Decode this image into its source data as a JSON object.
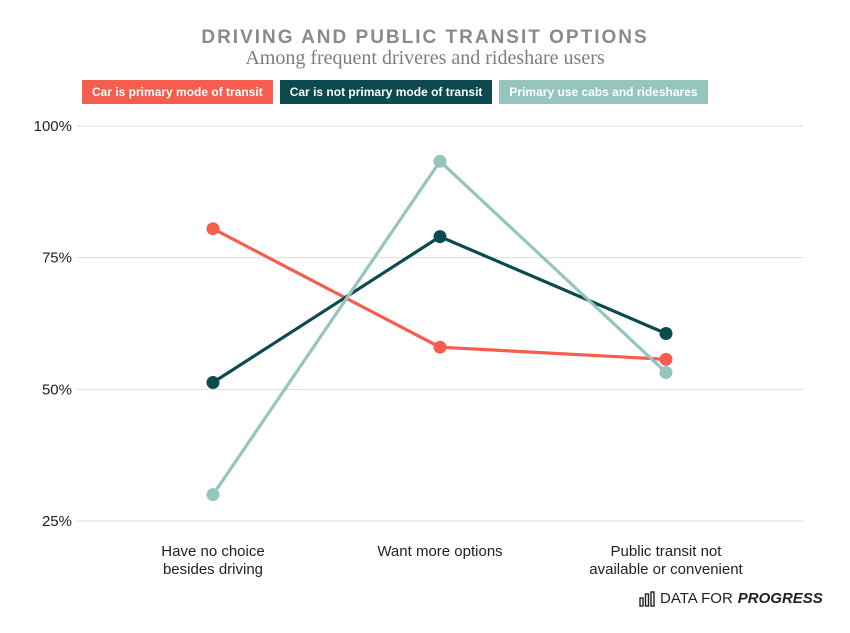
{
  "title": "DRIVING AND PUBLIC TRANSIT OPTIONS",
  "subtitle": "Among frequent driveres and rideshare users",
  "legend": [
    {
      "label": "Car is primary mode of transit",
      "color": "#f55d4e"
    },
    {
      "label": "Car is not primary mode of transit",
      "color": "#0c4a4f"
    },
    {
      "label": "Primary use cabs and rideshares",
      "color": "#95c5bd"
    }
  ],
  "brand": {
    "prefix": "DATA FOR",
    "strong": "PROGRESS",
    "icon": "bar-chart-icon"
  },
  "chart_data": {
    "type": "line",
    "categories": [
      [
        "Have no choice",
        "besides driving"
      ],
      [
        "Want more options"
      ],
      [
        "Public transit not",
        "available or convenient"
      ]
    ],
    "ylim": [
      25,
      100
    ],
    "yticks": [
      {
        "value": 25,
        "label": "25%"
      },
      {
        "value": 50,
        "label": "50%"
      },
      {
        "value": 75,
        "label": "75%"
      },
      {
        "value": 100,
        "label": "100%"
      }
    ],
    "grid": true,
    "legend_position": "top",
    "series": [
      {
        "name": "Car is primary mode of transit",
        "color": "#f55d4e",
        "values": [
          80.5,
          58.0,
          55.7
        ]
      },
      {
        "name": "Car is not primary mode of transit",
        "color": "#0c4a4f",
        "values": [
          51.3,
          79.0,
          60.6
        ]
      },
      {
        "name": "Primary use cabs and rideshares",
        "color": "#95c5bd",
        "values": [
          30.0,
          93.3,
          53.2
        ]
      }
    ]
  }
}
